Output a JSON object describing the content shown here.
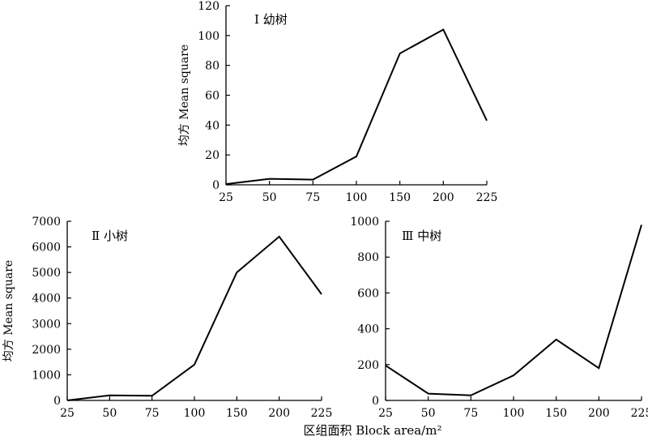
{
  "figure": {
    "shared_xlabel": "区组面积 Block area/m²"
  },
  "chart_data": [
    {
      "type": "line",
      "panel_label": "Ⅰ 幼树",
      "ylabel": "均方 Mean square",
      "categories": [
        "25",
        "50",
        "75",
        "100",
        "150",
        "200",
        "225"
      ],
      "values": [
        0.5,
        4,
        3.5,
        19,
        88,
        104,
        43
      ],
      "ylim": [
        0,
        120
      ],
      "yticks": [
        0,
        20,
        40,
        60,
        80,
        100,
        120
      ],
      "grid": false
    },
    {
      "type": "line",
      "panel_label": "Ⅱ 小树",
      "ylabel": "均方 Mean square",
      "categories": [
        "25",
        "50",
        "75",
        "100",
        "150",
        "200",
        "225"
      ],
      "values": [
        0,
        200,
        180,
        1400,
        5000,
        6400,
        4150
      ],
      "ylim": [
        0,
        7000
      ],
      "yticks": [
        0,
        1000,
        2000,
        3000,
        4000,
        5000,
        6000,
        7000
      ],
      "grid": false
    },
    {
      "type": "line",
      "panel_label": "Ⅲ 中树",
      "ylabel": "",
      "categories": [
        "25",
        "50",
        "75",
        "100",
        "150",
        "200",
        "225"
      ],
      "values": [
        195,
        38,
        28,
        140,
        340,
        180,
        980
      ],
      "ylim": [
        0,
        1000
      ],
      "yticks": [
        0,
        200,
        400,
        600,
        800,
        1000
      ],
      "grid": false
    }
  ]
}
